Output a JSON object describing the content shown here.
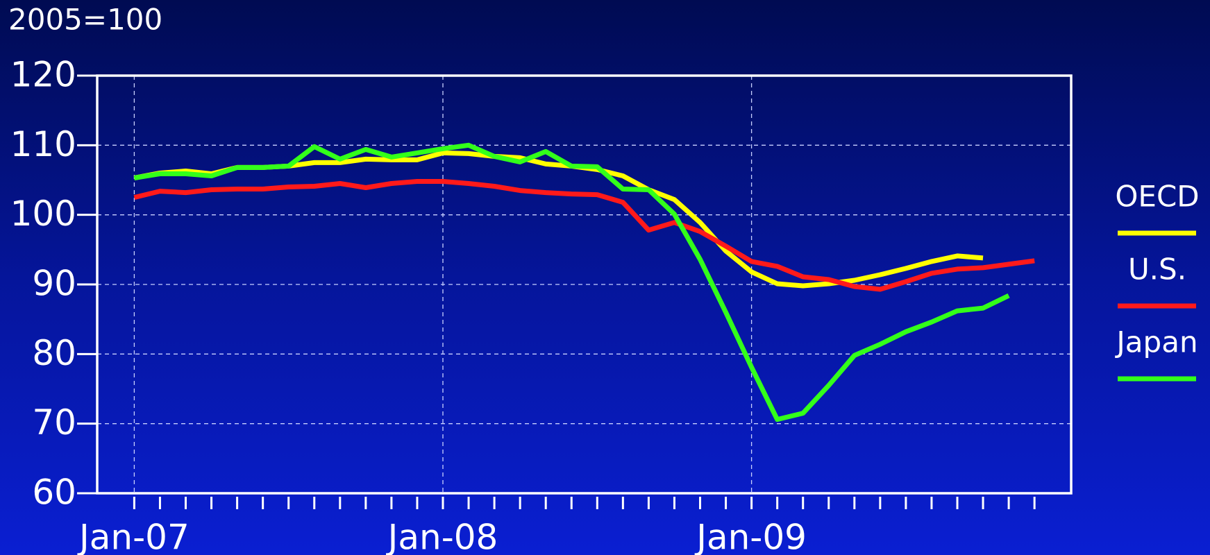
{
  "chart_data": {
    "type": "line",
    "subtitle": "2005=100",
    "categories": [
      "Jan-07",
      null,
      null,
      null,
      null,
      null,
      null,
      null,
      null,
      null,
      null,
      null,
      "Jan-08",
      null,
      null,
      null,
      null,
      null,
      null,
      null,
      null,
      null,
      null,
      null,
      "Jan-09",
      null,
      null,
      null,
      null,
      null,
      null,
      null,
      null,
      null,
      null,
      null
    ],
    "series": [
      {
        "name": "OECD",
        "color": "#ffff00",
        "values": [
          105.3,
          106,
          106.3,
          105.9,
          106.8,
          106.8,
          107,
          107.5,
          107.5,
          108,
          107.9,
          107.9,
          108.9,
          108.8,
          108.4,
          108.2,
          107.3,
          107,
          106.5,
          105.6,
          103.6,
          102.2,
          98.9,
          94.8,
          91.8,
          90.1,
          89.8,
          90.1,
          90.6,
          91.4,
          92.3,
          93.3,
          94.1,
          93.8,
          null,
          null
        ]
      },
      {
        "name": "U.S.",
        "color": "#ff1a1a",
        "values": [
          102.5,
          103.4,
          103.2,
          103.6,
          103.7,
          103.7,
          104,
          104.1,
          104.5,
          103.9,
          104.5,
          104.8,
          104.8,
          104.5,
          104.1,
          103.5,
          103.2,
          103,
          102.9,
          101.8,
          97.8,
          98.9,
          97.6,
          95.5,
          93.3,
          92.6,
          91.1,
          90.7,
          89.7,
          89.3,
          90.4,
          91.6,
          92.2,
          92.4,
          92.9,
          93.4
        ]
      },
      {
        "name": "Japan",
        "color": "#33ff1a",
        "values": [
          105.3,
          105.9,
          105.9,
          105.6,
          106.8,
          106.8,
          107,
          109.8,
          108,
          109.4,
          108.3,
          108.9,
          109.5,
          110,
          108.4,
          107.6,
          109.1,
          107,
          106.9,
          103.7,
          103.6,
          100.1,
          93.6,
          86,
          78.1,
          70.6,
          71.5,
          75.5,
          79.8,
          81.4,
          83.2,
          84.6,
          86.2,
          86.6,
          88.4,
          null
        ]
      }
    ],
    "ylim": [
      60,
      120
    ],
    "yticks": [
      60,
      70,
      80,
      90,
      100,
      110,
      120
    ],
    "grid": true,
    "legend": "right"
  }
}
